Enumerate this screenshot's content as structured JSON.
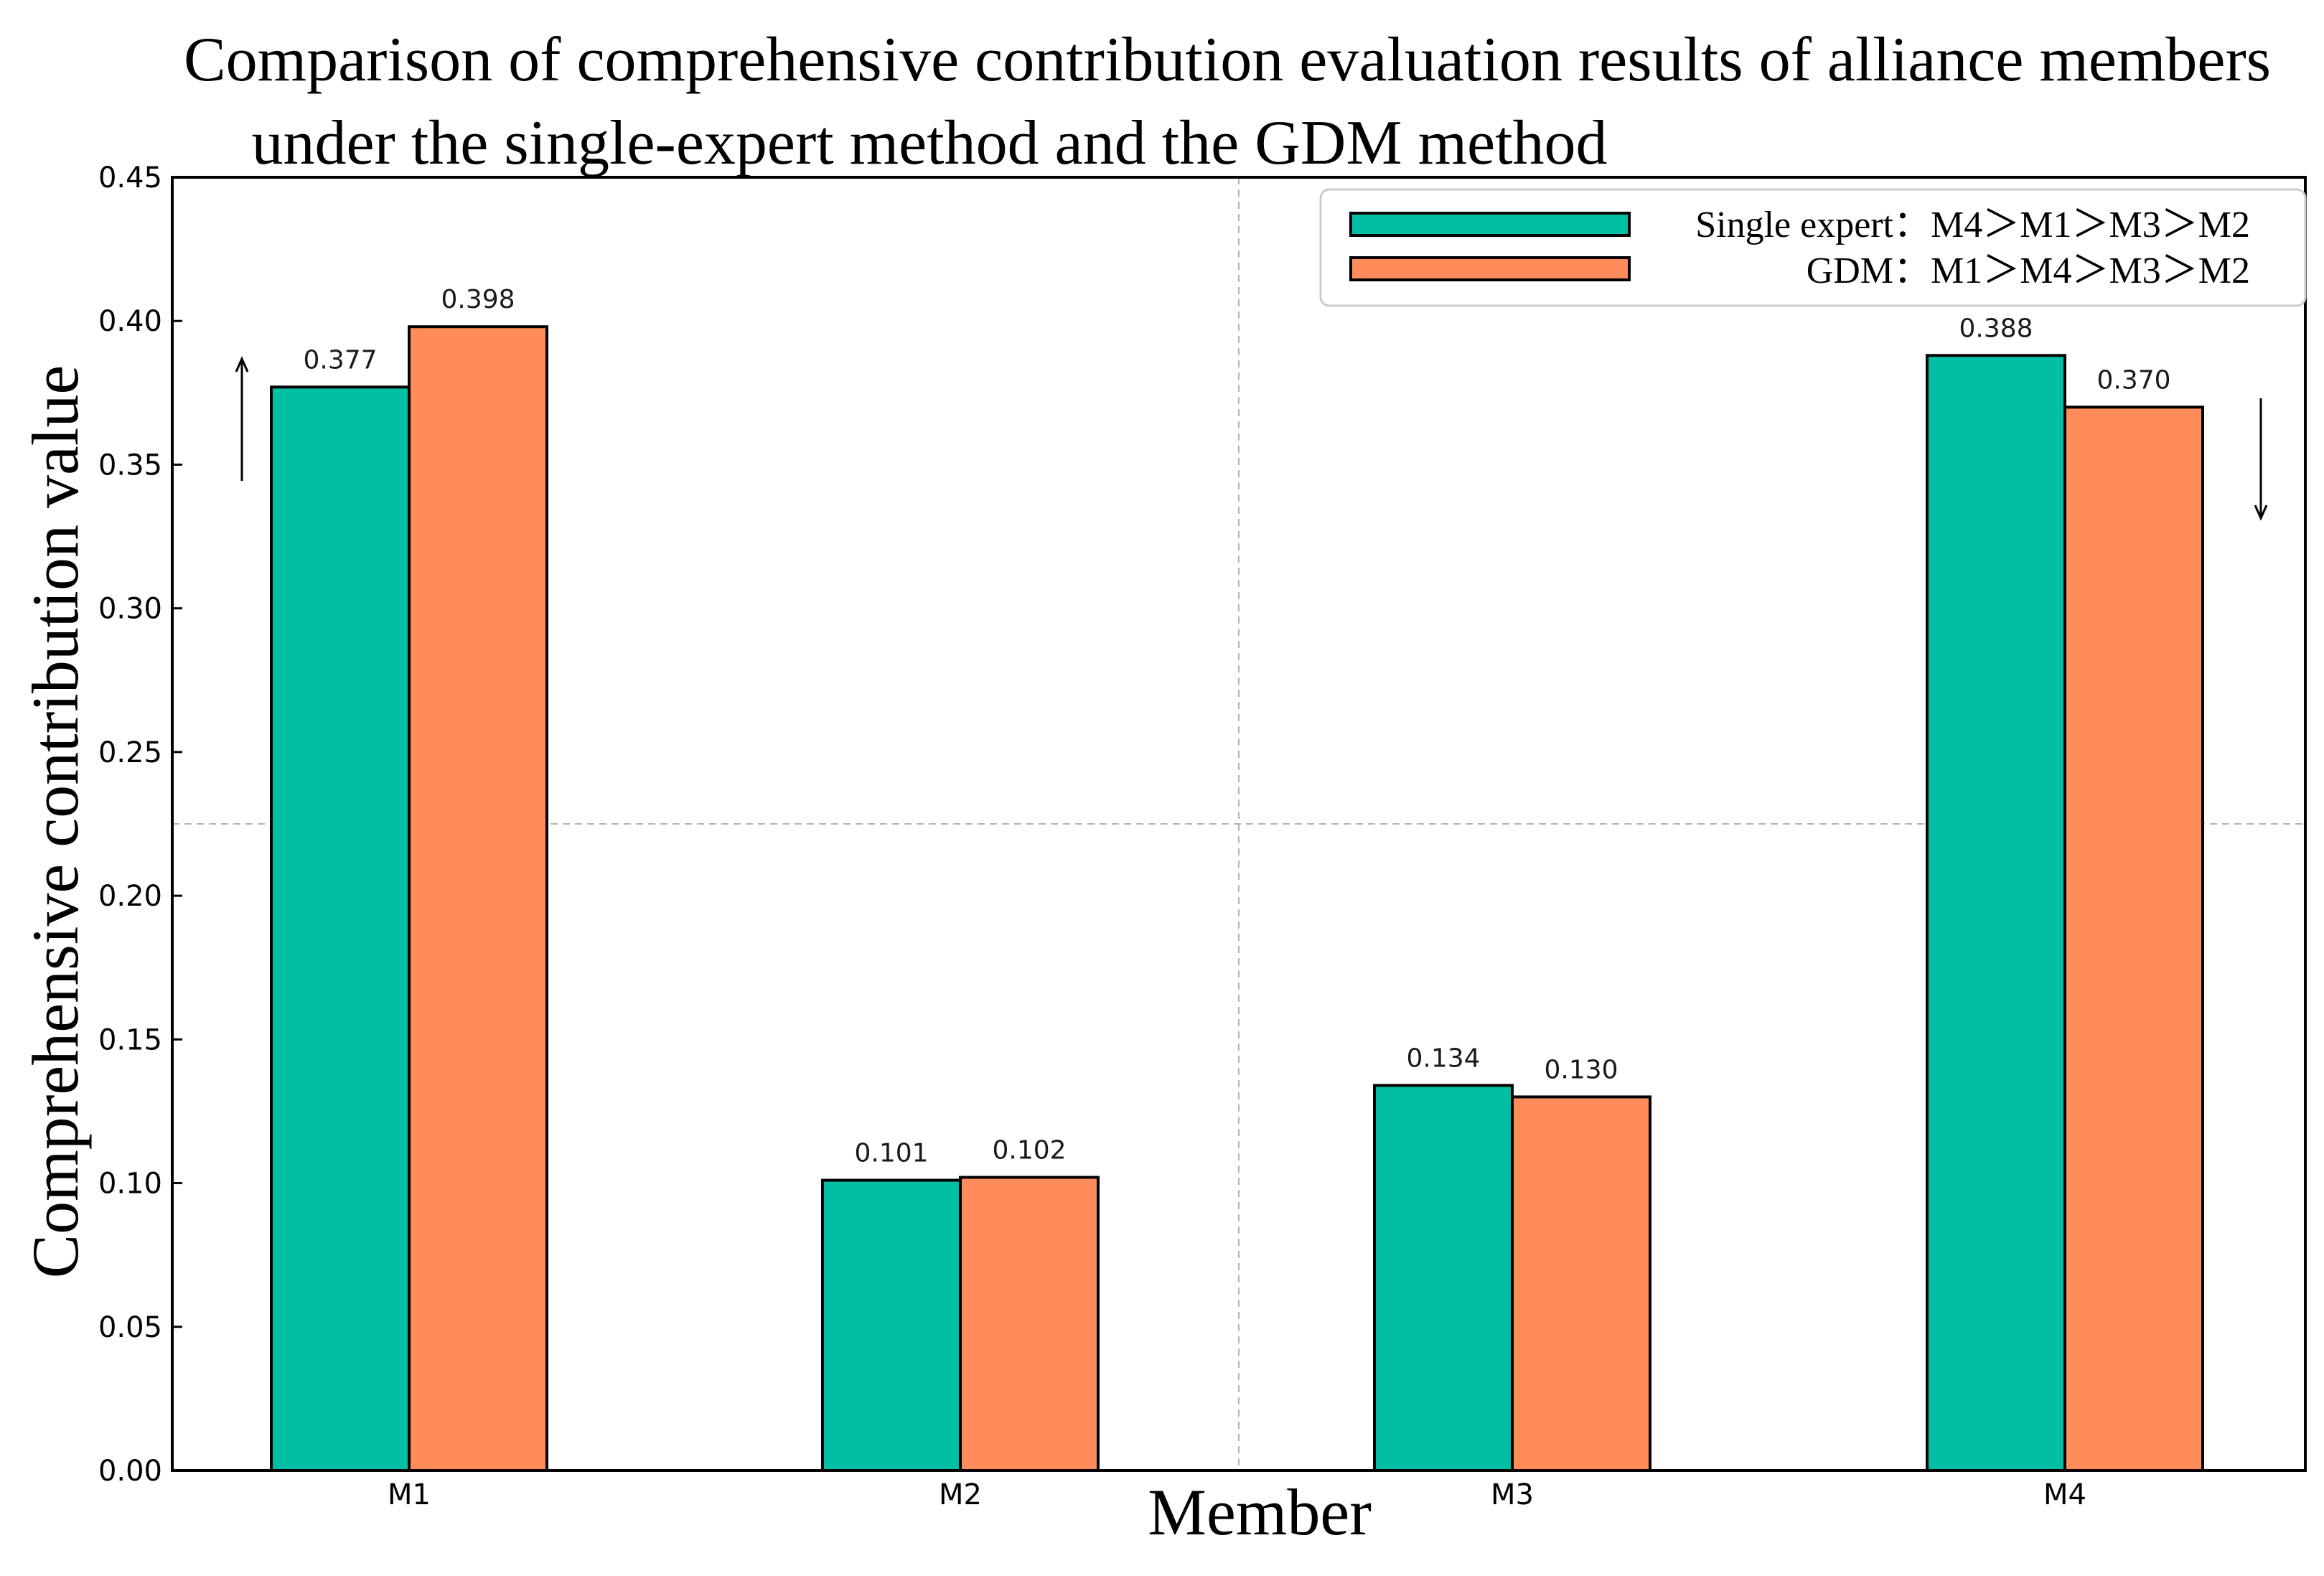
{
  "chart_data": {
    "type": "bar",
    "title_lines": [
      "Comparison of comprehensive contribution evaluation results of alliance members",
      "under the single-expert method and the GDM method"
    ],
    "xlabel": "Member",
    "ylabel": "Comprehensive contribution value",
    "categories": [
      "M1",
      "M2",
      "M3",
      "M4"
    ],
    "series": [
      {
        "name": "Single expert",
        "legend_label": "Single expert：M4＞M1＞M3＞M2",
        "color": "#00BFA5",
        "values": [
          0.377,
          0.101,
          0.134,
          0.388
        ]
      },
      {
        "name": "GDM",
        "legend_label": "GDM：M1＞M4＞M3＞M2",
        "color": "#FF8C5A",
        "values": [
          0.398,
          0.102,
          0.13,
          0.37
        ]
      }
    ],
    "data_labels": [
      [
        "0.377",
        "0.101",
        "0.134",
        "0.388"
      ],
      [
        "0.398",
        "0.102",
        "0.130",
        "0.370"
      ]
    ],
    "ylim": [
      0,
      0.45
    ],
    "yticks": [
      0.0,
      0.05,
      0.1,
      0.15,
      0.2,
      0.25,
      0.3,
      0.35,
      0.4,
      0.45
    ],
    "ytick_labels": [
      "0.00",
      "0.05",
      "0.10",
      "0.15",
      "0.20",
      "0.25",
      "0.30",
      "0.35",
      "0.40",
      "0.45"
    ],
    "grid": "dashed center crosshair",
    "legend_position": "top-right",
    "annotations": [
      {
        "category": "M1",
        "direction": "up"
      },
      {
        "category": "M4",
        "direction": "down"
      }
    ]
  }
}
